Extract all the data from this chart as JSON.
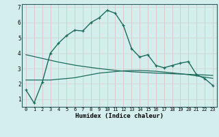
{
  "xlabel": "Humidex (Indice chaleur)",
  "x": [
    0,
    1,
    2,
    3,
    4,
    5,
    6,
    7,
    8,
    9,
    10,
    11,
    12,
    13,
    14,
    15,
    16,
    17,
    18,
    19,
    20,
    21,
    22,
    23
  ],
  "line1_y": [
    1.6,
    0.75,
    2.1,
    4.0,
    4.65,
    5.15,
    5.5,
    5.45,
    6.0,
    6.3,
    6.8,
    6.6,
    5.8,
    4.3,
    3.75,
    3.9,
    3.2,
    3.05,
    3.2,
    3.35,
    3.45,
    2.6,
    2.35,
    1.9
  ],
  "line2_y": [
    2.25,
    2.25,
    2.25,
    2.25,
    2.3,
    2.35,
    2.4,
    2.5,
    2.6,
    2.7,
    2.75,
    2.8,
    2.85,
    2.87,
    2.87,
    2.85,
    2.82,
    2.77,
    2.72,
    2.66,
    2.6,
    2.52,
    2.44,
    2.36
  ],
  "line3_y": [
    3.9,
    3.78,
    3.66,
    3.54,
    3.42,
    3.32,
    3.22,
    3.14,
    3.07,
    3.0,
    2.94,
    2.88,
    2.83,
    2.79,
    2.76,
    2.73,
    2.7,
    2.68,
    2.66,
    2.64,
    2.62,
    2.6,
    2.58,
    2.55
  ],
  "line_color": "#1a6b5a",
  "bg_color": "#d4eeed",
  "grid_color_v": "#e0b8b8",
  "grid_color_h": "#d0d0d0",
  "ylim": [
    0.5,
    7.2
  ],
  "xlim": [
    -0.5,
    23.5
  ],
  "yticks": [
    1,
    2,
    3,
    4,
    5,
    6,
    7
  ],
  "xticks": [
    0,
    1,
    2,
    3,
    4,
    5,
    6,
    7,
    8,
    9,
    10,
    11,
    12,
    13,
    14,
    15,
    16,
    17,
    18,
    19,
    20,
    21,
    22,
    23
  ]
}
